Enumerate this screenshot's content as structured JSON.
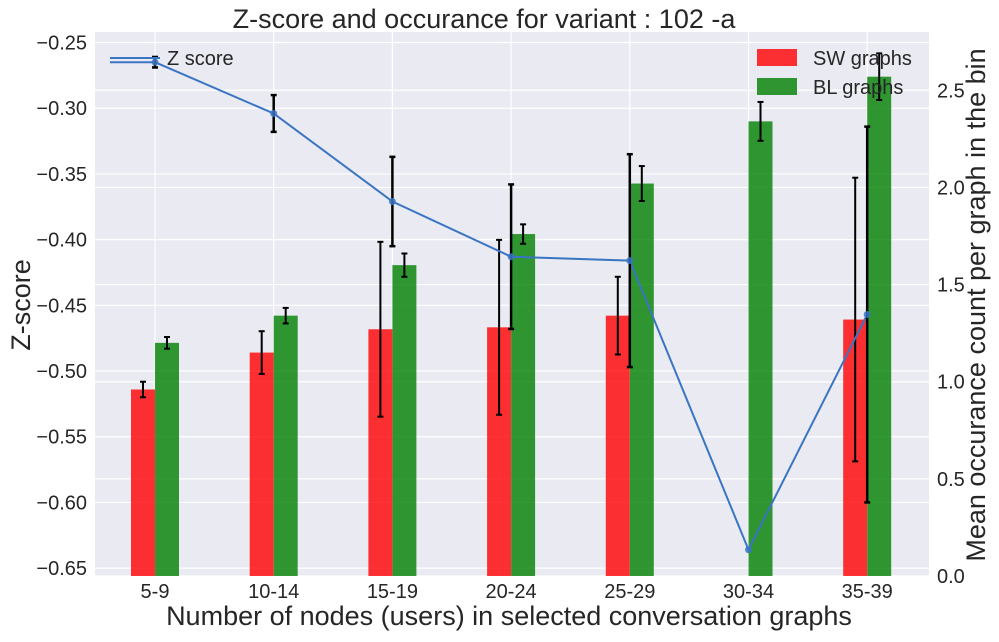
{
  "chart_data": {
    "type": "bar",
    "title": "Z-score and occurance for variant : 102 -a",
    "xlabel": "Number of nodes (users) in selected conversation graphs",
    "ylabel": "Z-score",
    "y2label": "Mean occurance count per graph in the bin",
    "categories": [
      "5-9",
      "10-14",
      "15-19",
      "20-24",
      "25-29",
      "30-34",
      "35-39"
    ],
    "ylim": [
      -0.656,
      -0.242
    ],
    "y2lim": [
      0,
      2.8
    ],
    "yticks": [
      "−0.25",
      "−0.30",
      "−0.35",
      "−0.40",
      "−0.45",
      "−0.50",
      "−0.55",
      "−0.60",
      "−0.65"
    ],
    "y2ticks": [
      "0.0",
      "0.5",
      "1.0",
      "1.5",
      "2.0",
      "2.5"
    ],
    "grid": true,
    "legend_left": "top-left",
    "legend_right": "top-right",
    "colors": {
      "background": "#eaeaf2",
      "grid": "#ffffff",
      "sw": "#ff0000",
      "bl": "#008000",
      "zline": "#3a75c4",
      "errorbar": "#000000"
    },
    "bar_series": [
      {
        "name": "SW graphs",
        "values": [
          0.96,
          1.15,
          1.27,
          1.28,
          1.34,
          0,
          1.32
        ],
        "errors": [
          0.04,
          0.11,
          0.45,
          0.45,
          0.2,
          0,
          0.73
        ]
      },
      {
        "name": "BL graphs",
        "values": [
          1.2,
          1.34,
          1.6,
          1.76,
          2.02,
          2.34,
          2.57
        ],
        "errors": [
          0.03,
          0.04,
          0.06,
          0.05,
          0.09,
          0.1,
          0.12
        ]
      }
    ],
    "line_series": {
      "name": "Z score",
      "values": [
        -0.265,
        -0.304,
        -0.371,
        -0.413,
        -0.416,
        -0.636,
        -0.457
      ],
      "errors": [
        0.004,
        0.014,
        0.034,
        0.055,
        0.081,
        0,
        0.143
      ],
      "legend_extends_left": true
    }
  }
}
